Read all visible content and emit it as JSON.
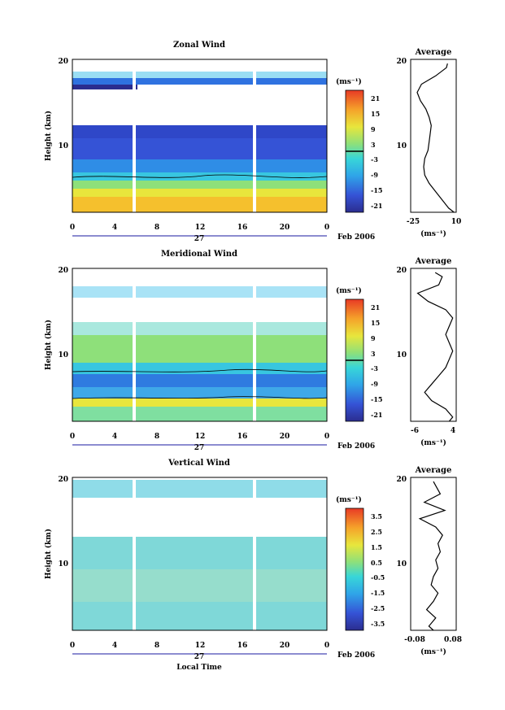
{
  "chart_data": [
    {
      "type": "heatmap",
      "title": "Zonal Wind",
      "ylabel": "Height (km)",
      "y_ticks": [
        10,
        20
      ],
      "ylim": [
        1.5,
        20
      ],
      "x_ticks": [
        "0",
        "4",
        "8",
        "12",
        "16",
        "20",
        "0"
      ],
      "xlim": [
        0,
        24
      ],
      "date_label": "27",
      "month_label": "Feb 2006",
      "colorbar": {
        "unit": "(ms⁻¹)",
        "ticks": [
          "21",
          "15",
          "9",
          "3",
          "-3",
          "-9",
          "-15",
          "-21"
        ],
        "range": [
          -24,
          24
        ]
      },
      "profile": {
        "title": "Average",
        "x_ticks": [
          "-25",
          "10"
        ],
        "xlim": [
          -30,
          12
        ],
        "xlabel": "(ms⁻¹)",
        "heights": [
          1.5,
          2,
          3,
          4,
          5,
          6,
          7,
          8,
          9,
          10,
          11,
          12,
          13,
          14,
          15,
          16,
          17,
          18,
          19,
          19.5
        ],
        "values": [
          10,
          5,
          -1,
          -7,
          -13,
          -17,
          -18,
          -17,
          -14,
          -13,
          -12,
          -11,
          -13,
          -16,
          -21,
          -24,
          -20,
          -7,
          3,
          4
        ]
      }
    },
    {
      "type": "heatmap",
      "title": "Meridional Wind",
      "ylabel": "Height (km)",
      "y_ticks": [
        10,
        20
      ],
      "ylim": [
        1.5,
        20
      ],
      "x_ticks": [
        "0",
        "4",
        "8",
        "12",
        "16",
        "20",
        "0"
      ],
      "xlim": [
        0,
        24
      ],
      "date_label": "27",
      "month_label": "Feb 2006",
      "colorbar": {
        "unit": "(ms⁻¹)",
        "ticks": [
          "21",
          "15",
          "9",
          "3",
          "-3",
          "-9",
          "-15",
          "-21"
        ],
        "range": [
          -24,
          24
        ]
      },
      "profile": {
        "title": "Average",
        "x_ticks": [
          "-6",
          "4"
        ],
        "xlim": [
          -8,
          5
        ],
        "xlabel": "(ms⁻¹)",
        "heights": [
          1.5,
          2,
          3,
          4,
          5,
          6,
          7,
          8,
          9,
          10,
          11,
          12,
          13,
          14,
          15,
          16,
          17,
          18,
          19,
          19.5
        ],
        "values": [
          3,
          4,
          2,
          -2,
          -4,
          -2,
          0,
          2,
          3,
          4,
          3,
          2,
          3,
          4,
          2,
          -3,
          -6,
          0,
          1,
          -1
        ]
      }
    },
    {
      "type": "heatmap",
      "title": "Vertical Wind",
      "ylabel": "Height (km)",
      "y_ticks": [
        10,
        20
      ],
      "ylim": [
        1.5,
        20
      ],
      "x_ticks": [
        "0",
        "4",
        "8",
        "12",
        "16",
        "20",
        "0"
      ],
      "xlim": [
        0,
        24
      ],
      "date_label": "27",
      "month_label": "Feb 2006",
      "xlabel": "Local Time",
      "colorbar": {
        "unit": "(ms⁻¹)",
        "ticks": [
          "3.5",
          "2.5",
          "1.5",
          "0.5",
          "-0.5",
          "-1.5",
          "-2.5",
          "-3.5"
        ],
        "range": [
          -4,
          4
        ]
      },
      "profile": {
        "title": "Average",
        "x_ticks": [
          "-0.08",
          "0.08"
        ],
        "xlim": [
          -0.1,
          0.1
        ],
        "xlabel": "(ms⁻¹)",
        "heights": [
          1.5,
          2,
          3,
          4,
          5,
          6,
          7,
          8,
          9,
          10,
          11,
          12,
          13,
          14,
          15,
          16,
          17,
          18,
          19,
          19.5
        ],
        "values": [
          0,
          -0.02,
          0.01,
          -0.03,
          0.0,
          0.02,
          -0.01,
          0.0,
          0.02,
          0.01,
          0.03,
          0.02,
          0.04,
          0.01,
          -0.06,
          0.05,
          -0.04,
          0.03,
          0.01,
          0.0
        ]
      }
    }
  ]
}
